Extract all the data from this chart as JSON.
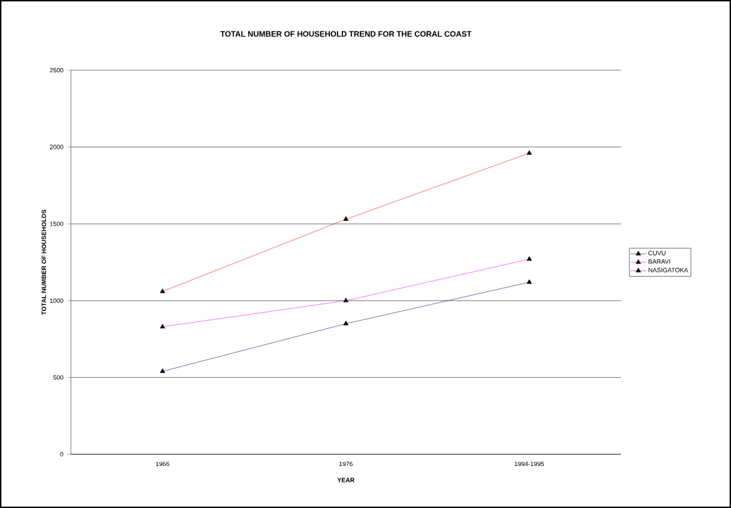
{
  "chart_data": {
    "type": "line",
    "title": "TOTAL NUMBER OF HOUSEHOLD TREND FOR THE CORAL COAST",
    "xlabel": "YEAR",
    "ylabel": "TOTAL NUMBER OF HOUSEHOLDS",
    "categories": [
      "1966",
      "1976",
      "1994-1995"
    ],
    "series": [
      {
        "name": "CUVU",
        "color": "#000080",
        "values": [
          540,
          850,
          1120
        ]
      },
      {
        "name": "BARAVI",
        "color": "#ff00ff",
        "values": [
          830,
          1000,
          1270
        ]
      },
      {
        "name": "NASIGATOKA",
        "color": "#ff0000",
        "values": [
          1060,
          1530,
          1960
        ]
      }
    ],
    "ylim": [
      0,
      2500
    ],
    "yticks": [
      0,
      500,
      1000,
      1500,
      2000,
      2500
    ],
    "grid": "y",
    "legend": "right",
    "marker": "triangle"
  }
}
